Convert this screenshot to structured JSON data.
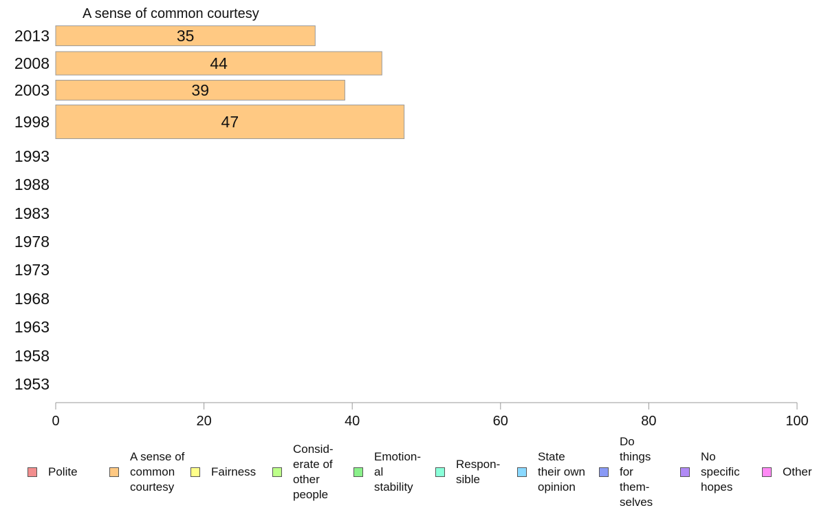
{
  "chart_data": {
    "type": "bar",
    "orientation": "horizontal",
    "title": "A sense of common courtesy",
    "categories": [
      "2013",
      "2008",
      "2003",
      "1998",
      "1993",
      "1988",
      "1983",
      "1978",
      "1973",
      "1968",
      "1963",
      "1958",
      "1953"
    ],
    "series": [
      {
        "name": "A sense of common courtesy",
        "color": "#FFC983",
        "values": [
          35,
          44,
          39,
          47,
          null,
          null,
          null,
          null,
          null,
          null,
          null,
          null,
          null
        ]
      }
    ],
    "xlim": [
      0,
      100
    ],
    "xticks": [
      "0",
      "20",
      "40",
      "60",
      "80",
      "100"
    ],
    "grid": false,
    "legend_position": "bottom"
  },
  "legend": [
    {
      "label": "Polite",
      "color": "#F28E8E"
    },
    {
      "label": "A sense of common courtesy",
      "color": "#FFC983"
    },
    {
      "label": "Fairness",
      "color": "#FFFF8A"
    },
    {
      "label": "Consid-erate of other people",
      "color": "#BDFF8A"
    },
    {
      "label": "Emotion-al stability",
      "color": "#8AF08A"
    },
    {
      "label": "Respon-sible",
      "color": "#8AFFD9"
    },
    {
      "label": "State their own opinion",
      "color": "#8AD9FF"
    },
    {
      "label": "Do things for them-selves",
      "color": "#8A9AF5"
    },
    {
      "label": "No specific hopes",
      "color": "#B08AF5"
    },
    {
      "label": "Other",
      "color": "#FF8AF5"
    }
  ]
}
